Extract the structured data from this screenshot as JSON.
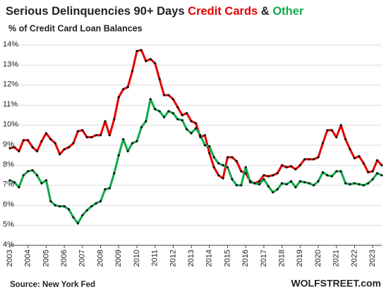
{
  "chart_data": {
    "type": "line",
    "title": "Serious Delinquencies 90+ Days",
    "title_joiner": "&",
    "subtitle": "% of Credit Card Loan Balances",
    "source": "Source: New York Fed",
    "watermark": "WOLFSTREET.com",
    "x": [
      2003,
      2003.25,
      2003.5,
      2003.75,
      2004,
      2004.25,
      2004.5,
      2004.75,
      2005,
      2005.25,
      2005.5,
      2005.75,
      2006,
      2006.25,
      2006.5,
      2006.75,
      2007,
      2007.25,
      2007.5,
      2007.75,
      2008,
      2008.25,
      2008.5,
      2008.75,
      2009,
      2009.25,
      2009.5,
      2009.75,
      2010,
      2010.25,
      2010.5,
      2010.75,
      2011,
      2011.25,
      2011.5,
      2011.75,
      2012,
      2012.25,
      2012.5,
      2012.75,
      2013,
      2013.25,
      2013.5,
      2013.75,
      2014,
      2014.25,
      2014.5,
      2014.75,
      2015,
      2015.25,
      2015.5,
      2015.75,
      2016,
      2016.25,
      2016.5,
      2016.75,
      2017,
      2017.25,
      2017.5,
      2017.75,
      2018,
      2018.25,
      2018.5,
      2018.75,
      2019,
      2019.25,
      2019.5,
      2019.75,
      2020,
      2020.25,
      2020.5,
      2020.75,
      2021,
      2021.25,
      2021.5,
      2021.75,
      2022,
      2022.25,
      2022.5,
      2022.75,
      2023,
      2023.25,
      2023.5
    ],
    "series": [
      {
        "name": "Credit Cards",
        "color": "#e30000",
        "values": [
          8.85,
          8.9,
          8.7,
          9.25,
          9.25,
          8.9,
          8.7,
          9.2,
          9.6,
          9.3,
          9.1,
          8.55,
          8.8,
          8.9,
          9.1,
          9.7,
          9.75,
          9.4,
          9.4,
          9.5,
          9.5,
          10.2,
          9.5,
          10.3,
          11.4,
          11.8,
          11.9,
          12.7,
          13.7,
          13.75,
          13.2,
          13.3,
          13.1,
          12.3,
          11.5,
          11.5,
          11.3,
          10.9,
          10.5,
          10.6,
          10.2,
          10.1,
          9.4,
          9.5,
          8.6,
          7.9,
          7.5,
          7.35,
          8.4,
          8.4,
          8.2,
          7.7,
          7.6,
          7.2,
          7.1,
          7.2,
          7.5,
          7.45,
          7.5,
          7.6,
          8.0,
          7.9,
          7.95,
          7.8,
          8.0,
          8.3,
          8.3,
          8.3,
          8.4,
          9.1,
          9.75,
          9.75,
          9.4,
          10.0,
          9.3,
          8.8,
          8.35,
          8.45,
          8.1,
          7.65,
          7.7,
          8.25,
          8.0
        ]
      },
      {
        "name": "Other",
        "color": "#12a84a",
        "values": [
          7.25,
          7.15,
          6.9,
          7.5,
          7.7,
          7.75,
          7.5,
          7.1,
          7.25,
          6.2,
          6.0,
          5.95,
          5.95,
          5.8,
          5.4,
          5.1,
          5.5,
          5.75,
          5.95,
          6.1,
          6.2,
          6.8,
          6.85,
          7.6,
          8.5,
          9.3,
          8.7,
          9.1,
          9.2,
          9.9,
          10.2,
          11.3,
          10.8,
          10.7,
          10.4,
          10.7,
          10.6,
          10.3,
          10.25,
          9.8,
          9.6,
          9.85,
          9.5,
          9.0,
          8.95,
          8.4,
          8.1,
          8.0,
          7.9,
          7.3,
          7.0,
          7.0,
          7.9,
          7.15,
          7.1,
          7.05,
          7.3,
          6.95,
          6.65,
          6.8,
          7.1,
          7.05,
          7.2,
          6.9,
          7.2,
          7.15,
          7.1,
          7.0,
          7.2,
          7.65,
          7.5,
          7.45,
          7.7,
          7.7,
          7.1,
          7.05,
          7.1,
          7.05,
          7.0,
          7.1,
          7.3,
          7.6,
          7.5
        ]
      }
    ],
    "xlim": [
      2003,
      2023.5
    ],
    "xticks": [
      2003,
      2004,
      2005,
      2006,
      2007,
      2008,
      2009,
      2010,
      2011,
      2012,
      2013,
      2014,
      2015,
      2016,
      2017,
      2018,
      2019,
      2020,
      2021,
      2022,
      2023
    ],
    "ylim": [
      4,
      14
    ],
    "yticks": [
      {
        "value": 4,
        "label": "4%"
      },
      {
        "value": 5,
        "label": "5%"
      },
      {
        "value": 6,
        "label": "6%"
      },
      {
        "value": 7,
        "label": "7%"
      },
      {
        "value": 8,
        "label": "8%"
      },
      {
        "value": 9,
        "label": "9%"
      },
      {
        "value": 10,
        "label": "10%"
      },
      {
        "value": 11,
        "label": "11%"
      },
      {
        "value": 12,
        "label": "12%"
      },
      {
        "value": 13,
        "label": "13%"
      },
      {
        "value": 14,
        "label": "14%"
      }
    ],
    "grid": true
  }
}
